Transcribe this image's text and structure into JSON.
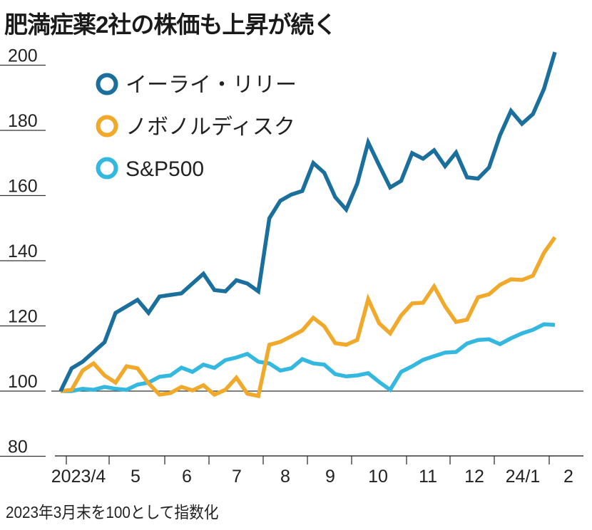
{
  "chart_data": {
    "type": "line",
    "title": "肥満症薬2社の株価も上昇が続く",
    "note": "2023年3月末を100として指数化",
    "ylim": [
      80,
      205
    ],
    "yticks": [
      80,
      100,
      120,
      140,
      160,
      180,
      200
    ],
    "xtick_labels": [
      "2023/4",
      "5",
      "6",
      "7",
      "8",
      "9",
      "10",
      "11",
      "12",
      "24/1",
      "2"
    ],
    "grid": false,
    "legend_position": "top-left",
    "x": [
      "2023-03-31",
      "2023-04-07",
      "2023-04-14",
      "2023-04-21",
      "2023-04-28",
      "2023-05-05",
      "2023-05-12",
      "2023-05-19",
      "2023-05-26",
      "2023-06-02",
      "2023-06-09",
      "2023-06-16",
      "2023-06-23",
      "2023-06-30",
      "2023-07-07",
      "2023-07-14",
      "2023-07-21",
      "2023-07-28",
      "2023-08-04",
      "2023-08-11",
      "2023-08-18",
      "2023-08-25",
      "2023-09-01",
      "2023-09-08",
      "2023-09-15",
      "2023-09-22",
      "2023-09-29",
      "2023-10-06",
      "2023-10-13",
      "2023-10-20",
      "2023-10-27",
      "2023-11-03",
      "2023-11-10",
      "2023-11-17",
      "2023-11-24",
      "2023-12-01",
      "2023-12-08",
      "2023-12-15",
      "2023-12-22",
      "2023-12-29",
      "2024-01-05",
      "2024-01-12",
      "2024-01-19",
      "2024-01-26",
      "2024-02-02",
      "2024-02-09"
    ],
    "series": [
      {
        "name": "イーライ・リリー",
        "color": "#1a6f9c",
        "values": [
          100,
          107,
          109,
          112,
          115,
          124,
          126,
          128,
          124,
          129,
          129.5,
          130,
          133,
          136,
          131,
          130.6,
          134,
          133,
          130.6,
          153,
          158.4,
          160.3,
          161.4,
          170,
          167,
          159.5,
          155.7,
          163.6,
          176.3,
          169.3,
          162.5,
          164.5,
          173,
          171.3,
          173.9,
          169,
          173.2,
          165.6,
          165.2,
          168.6,
          178.5,
          186,
          182,
          185,
          192.7,
          204
        ]
      },
      {
        "name": "ノボノルディスク",
        "color": "#f0a92a",
        "values": [
          100,
          100.4,
          106.3,
          108.5,
          104.8,
          102.6,
          107.6,
          107,
          102.4,
          98.9,
          99.4,
          101.3,
          100.2,
          101.8,
          98.9,
          100.4,
          104.1,
          99.2,
          98.5,
          114.2,
          115.1,
          116.8,
          118.6,
          122.5,
          119.9,
          114.7,
          114.2,
          115.7,
          128.2,
          120.8,
          117.7,
          123.2,
          126.9,
          127.1,
          132.1,
          126,
          121.2,
          121.9,
          128.8,
          129.7,
          132.6,
          134.3,
          134.1,
          135.4,
          142.4,
          147.2
        ]
      },
      {
        "name": "S&P500",
        "color": "#35b8e0",
        "values": [
          100,
          100,
          100.7,
          100.4,
          101.3,
          100.7,
          100.4,
          102,
          102.6,
          104.4,
          104.8,
          107.2,
          105.9,
          108.1,
          107.1,
          109.5,
          110.3,
          111.4,
          109,
          108.5,
          106.3,
          107,
          109.8,
          108.5,
          108.1,
          105.2,
          104.5,
          104.8,
          105.5,
          102.8,
          100.4,
          105.9,
          107.6,
          109.6,
          110.7,
          111.8,
          112,
          114.6,
          115.7,
          115.9,
          114.4,
          116.2,
          117.7,
          118.8,
          120.5,
          120.3
        ]
      }
    ]
  }
}
